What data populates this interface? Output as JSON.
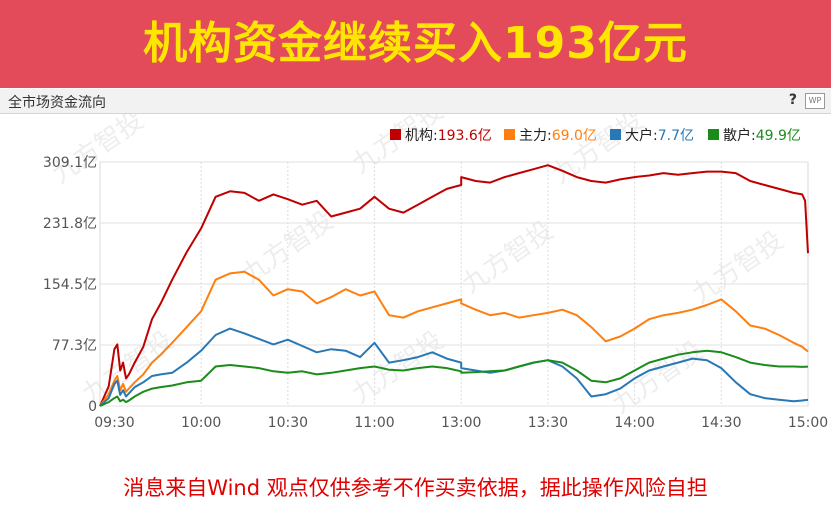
{
  "banner": {
    "title": "机构资金继续买入193亿元"
  },
  "panel": {
    "title": "全市场资金流向",
    "help_label": "?",
    "wp_label": "WP"
  },
  "watermark": "九方智投",
  "disclaimer": "消息来自Wind 观点仅供参考不作买卖依据，据此操作风险自担",
  "chart_data": {
    "type": "line",
    "title": "",
    "xlabel": "",
    "ylabel": "",
    "ylim": [
      0,
      309.1
    ],
    "yticks": [
      0,
      77.3,
      154.5,
      231.8,
      309.1
    ],
    "ytick_labels": [
      "0",
      "77.3亿",
      "154.5亿",
      "231.8亿",
      "309.1亿"
    ],
    "xlim": [
      "09:25",
      "15:00"
    ],
    "xticks": [
      "09:30",
      "10:00",
      "10:30",
      "11:00",
      "13:00",
      "13:30",
      "14:00",
      "14:30",
      "15:00"
    ],
    "grid": true,
    "legend_position": "top-right",
    "x": [
      "09:25",
      "09:28",
      "09:30",
      "09:31",
      "09:32",
      "09:33",
      "09:34",
      "09:35",
      "09:37",
      "09:40",
      "09:43",
      "09:46",
      "09:50",
      "09:55",
      "10:00",
      "10:05",
      "10:10",
      "10:15",
      "10:20",
      "10:25",
      "10:30",
      "10:35",
      "10:40",
      "10:45",
      "10:50",
      "10:55",
      "11:00",
      "11:05",
      "11:10",
      "11:15",
      "11:20",
      "11:25",
      "11:30",
      "13:00",
      "13:05",
      "13:10",
      "13:15",
      "13:20",
      "13:25",
      "13:30",
      "13:35",
      "13:40",
      "13:45",
      "13:50",
      "13:55",
      "14:00",
      "14:05",
      "14:10",
      "14:15",
      "14:20",
      "14:25",
      "14:30",
      "14:35",
      "14:40",
      "14:45",
      "14:50",
      "14:55",
      "14:58",
      "14:59",
      "15:00"
    ],
    "series": [
      {
        "name": "机构",
        "legend_value": "193.6亿",
        "color": "#c00000",
        "values": [
          0,
          25,
          72,
          78,
          45,
          55,
          35,
          40,
          55,
          75,
          110,
          130,
          160,
          195,
          225,
          265,
          272,
          270,
          260,
          268,
          262,
          255,
          260,
          240,
          245,
          250,
          265,
          250,
          245,
          255,
          265,
          275,
          280,
          290,
          285,
          283,
          290,
          295,
          300,
          305,
          298,
          290,
          285,
          283,
          287,
          290,
          292,
          295,
          293,
          295,
          297,
          297,
          295,
          285,
          280,
          275,
          270,
          268,
          260,
          193.6
        ]
      },
      {
        "name": "主力",
        "legend_value": "69.0亿",
        "color": "#ff7f0e",
        "values": [
          0,
          15,
          32,
          38,
          20,
          28,
          18,
          22,
          30,
          40,
          55,
          65,
          80,
          100,
          120,
          160,
          168,
          170,
          160,
          140,
          148,
          145,
          130,
          138,
          148,
          140,
          145,
          115,
          112,
          120,
          125,
          130,
          135,
          130,
          122,
          115,
          118,
          112,
          115,
          118,
          122,
          115,
          100,
          82,
          88,
          98,
          110,
          115,
          118,
          122,
          128,
          135,
          120,
          102,
          98,
          90,
          80,
          75,
          72,
          69.0
        ]
      },
      {
        "name": "大户",
        "legend_value": "7.7亿",
        "color": "#2878b5",
        "values": [
          0,
          10,
          28,
          32,
          14,
          20,
          12,
          16,
          24,
          30,
          38,
          40,
          42,
          55,
          70,
          90,
          98,
          92,
          85,
          78,
          84,
          76,
          68,
          72,
          70,
          62,
          80,
          55,
          58,
          62,
          68,
          60,
          55,
          48,
          45,
          42,
          45,
          50,
          55,
          58,
          50,
          35,
          12,
          15,
          22,
          35,
          45,
          50,
          55,
          60,
          58,
          48,
          30,
          15,
          10,
          8,
          6,
          7,
          7.5,
          7.7
        ]
      },
      {
        "name": "散户",
        "legend_value": "49.9亿",
        "color": "#1a8c1a",
        "values": [
          0,
          5,
          10,
          12,
          6,
          8,
          5,
          7,
          12,
          18,
          22,
          24,
          26,
          30,
          32,
          50,
          52,
          50,
          48,
          44,
          42,
          44,
          40,
          42,
          45,
          48,
          50,
          46,
          45,
          48,
          50,
          48,
          44,
          42,
          43,
          44,
          45,
          50,
          55,
          58,
          55,
          45,
          32,
          30,
          35,
          45,
          55,
          60,
          65,
          68,
          70,
          68,
          62,
          55,
          52,
          50,
          50,
          49.5,
          49.8,
          49.9
        ]
      }
    ]
  }
}
